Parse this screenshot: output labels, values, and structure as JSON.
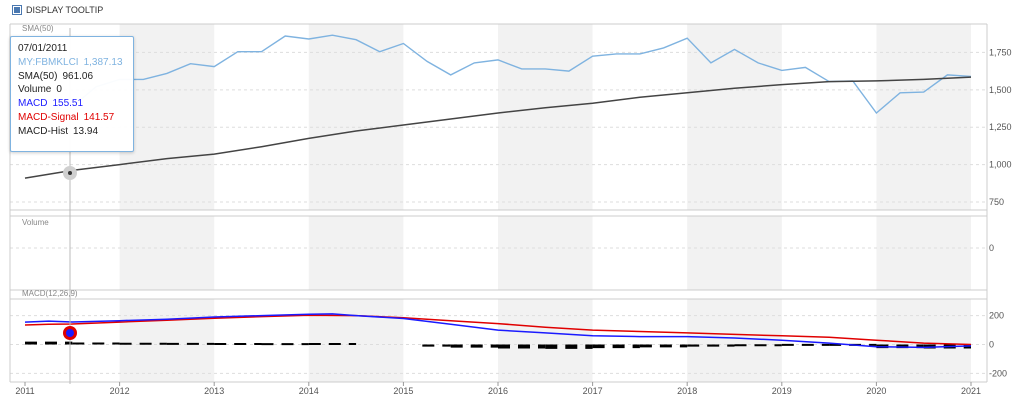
{
  "header": {
    "toggle_label": "DISPLAY TOOLTIP"
  },
  "tooltip": {
    "date": "07/01/2011",
    "rows": [
      {
        "label": "MY:FBMKLCI",
        "value": "1,387.13"
      },
      {
        "label": "SMA(50)",
        "value": "961.06"
      },
      {
        "label": "Volume",
        "value": "0"
      },
      {
        "label": "MACD",
        "value": "155.51"
      },
      {
        "label": "MACD-Signal",
        "value": "141.57"
      },
      {
        "label": "MACD-Hist",
        "value": "13.94"
      }
    ]
  },
  "colors": {
    "price": "#7fb3e0",
    "sma": "#444444",
    "macd": "#1a1aff",
    "signal": "#e00000",
    "hist": "#000000",
    "band": "#f2f2f2",
    "grid": "#dddddd"
  },
  "chart_data": [
    {
      "type": "line",
      "title": "SMA(50)",
      "x_ticks": [
        "2011",
        "2012",
        "2013",
        "2014",
        "2015",
        "2016",
        "2017",
        "2018",
        "2019",
        "2020",
        "2021"
      ],
      "ylim": [
        750,
        1900
      ],
      "yticks": [
        750,
        1000,
        1250,
        1500,
        1750
      ],
      "ytick_labels": [
        "750",
        "1,000",
        "1,250",
        "1,500",
        "1,750"
      ],
      "series": [
        {
          "name": "MY:FBMKLCI",
          "x": [
            2011.5,
            2011.75,
            2012,
            2012.25,
            2012.5,
            2012.75,
            2013,
            2013.25,
            2013.5,
            2013.75,
            2014,
            2014.25,
            2014.5,
            2014.75,
            2015,
            2015.25,
            2015.5,
            2015.75,
            2016,
            2016.25,
            2016.5,
            2016.75,
            2017,
            2017.25,
            2017.5,
            2017.75,
            2018,
            2018.25,
            2018.5,
            2018.75,
            2019,
            2019.25,
            2019.5,
            2019.75,
            2020,
            2020.25,
            2020.5,
            2020.75,
            2021
          ],
          "y": [
            1387,
            1520,
            1570,
            1570,
            1610,
            1675,
            1655,
            1755,
            1755,
            1860,
            1840,
            1865,
            1835,
            1755,
            1810,
            1690,
            1600,
            1680,
            1700,
            1640,
            1640,
            1625,
            1725,
            1740,
            1740,
            1780,
            1845,
            1680,
            1770,
            1680,
            1630,
            1650,
            1555,
            1560,
            1345,
            1480,
            1485,
            1600,
            1590
          ]
        },
        {
          "name": "SMA(50)",
          "x": [
            2011,
            2011.5,
            2012,
            2012.5,
            2013,
            2013.5,
            2014,
            2014.5,
            2015,
            2015.5,
            2016,
            2016.5,
            2017,
            2017.5,
            2018,
            2018.5,
            2019,
            2019.5,
            2020,
            2020.5,
            2021
          ],
          "y": [
            910,
            961,
            1000,
            1040,
            1070,
            1120,
            1175,
            1225,
            1265,
            1305,
            1345,
            1380,
            1410,
            1450,
            1480,
            1510,
            1535,
            1555,
            1560,
            1570,
            1585
          ]
        }
      ]
    },
    {
      "type": "bar",
      "title": "Volume",
      "yticks": [
        0
      ],
      "ytick_labels": [
        "0"
      ],
      "series": [
        {
          "values": []
        }
      ]
    },
    {
      "type": "line",
      "title": "MACD(12,26,9)",
      "ylim": [
        -240,
        240
      ],
      "yticks": [
        200,
        0,
        -200
      ],
      "ytick_labels": [
        "200",
        "0",
        "-200"
      ],
      "series": [
        {
          "name": "MACD",
          "x": [
            2011,
            2011.25,
            2011.5,
            2012,
            2012.5,
            2013,
            2013.5,
            2014,
            2014.25,
            2014.5,
            2015,
            2015.5,
            2016,
            2016.5,
            2017,
            2017.5,
            2018,
            2018.5,
            2019,
            2019.5,
            2020,
            2020.5,
            2021
          ],
          "y": [
            155,
            162,
            155.51,
            165,
            175,
            190,
            200,
            210,
            212,
            200,
            180,
            140,
            100,
            80,
            60,
            55,
            55,
            45,
            30,
            10,
            -15,
            -20,
            -10
          ]
        },
        {
          "name": "MACD-Signal",
          "x": [
            2011,
            2011.25,
            2011.5,
            2012,
            2012.5,
            2013,
            2013.5,
            2014,
            2014.5,
            2015,
            2015.5,
            2016,
            2016.5,
            2017,
            2017.5,
            2018,
            2018.5,
            2019,
            2019.5,
            2020,
            2020.5,
            2021
          ],
          "y": [
            135,
            140,
            141.57,
            155,
            168,
            182,
            193,
            202,
            200,
            185,
            165,
            145,
            120,
            100,
            90,
            80,
            70,
            60,
            50,
            30,
            10,
            0
          ]
        },
        {
          "name": "MACD-Hist",
          "x": [
            2011,
            2011.5,
            2012,
            2012.5,
            2013,
            2013.5,
            2014,
            2014.5,
            2015.2,
            2015.5,
            2016,
            2016.5,
            2017,
            2017.5,
            2018,
            2018.5,
            2019,
            2019.5,
            2020,
            2020.5,
            2021
          ],
          "y": [
            20,
            13.94,
            10,
            8,
            7,
            6,
            7,
            5,
            -15,
            -22,
            -28,
            -30,
            -25,
            -20,
            -15,
            -10,
            -5,
            -5,
            -25,
            -28,
            -15
          ]
        }
      ]
    }
  ]
}
